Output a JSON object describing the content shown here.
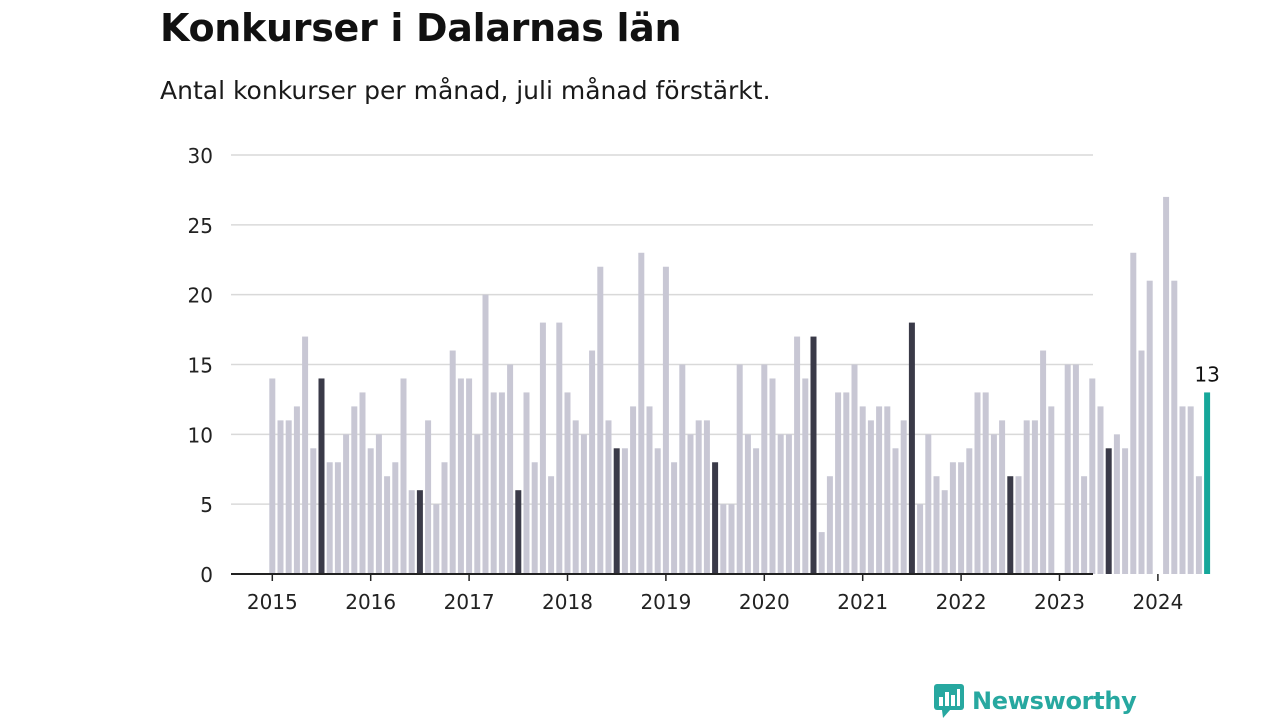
{
  "title": "Konkurser i Dalarnas län",
  "subtitle": "Antal konkurser per månad, juli månad förstärkt.",
  "brand": {
    "name": "Newsworthy",
    "icon": "newsworthy-logo-icon"
  },
  "colors": {
    "bar": "#c8c7d4",
    "highlight": "#3a3a48",
    "latest": "#16a79a",
    "grid": "#d9d9d9",
    "axis": "#222222",
    "brand": "#27a8a0"
  },
  "chart_data": {
    "type": "bar",
    "title": "Konkurser i Dalarnas län",
    "subtitle": "Antal konkurser per månad, juli månad förstärkt.",
    "xlabel": "",
    "ylabel": "",
    "ylim": [
      0,
      30
    ],
    "yticks": [
      0,
      5,
      10,
      15,
      20,
      25,
      30
    ],
    "xticks": [
      "2015",
      "2016",
      "2017",
      "2018",
      "2019",
      "2020",
      "2021",
      "2022",
      "2023",
      "2024"
    ],
    "grid": true,
    "start": "2015-01",
    "highlight_month": "juli",
    "annotation": {
      "label": "13",
      "month": "2024-07"
    },
    "values": [
      14,
      11,
      11,
      12,
      17,
      9,
      14,
      8,
      8,
      10,
      12,
      13,
      9,
      10,
      7,
      8,
      14,
      6,
      6,
      11,
      5,
      8,
      16,
      14,
      14,
      10,
      20,
      13,
      13,
      15,
      6,
      13,
      8,
      18,
      7,
      18,
      13,
      11,
      10,
      16,
      22,
      11,
      9,
      9,
      12,
      23,
      12,
      9,
      22,
      8,
      15,
      10,
      11,
      11,
      8,
      5,
      5,
      15,
      10,
      9,
      15,
      14,
      10,
      10,
      17,
      14,
      17,
      3,
      7,
      13,
      13,
      15,
      12,
      11,
      12,
      12,
      9,
      11,
      18,
      5,
      10,
      7,
      6,
      8,
      8,
      9,
      13,
      13,
      10,
      11,
      7,
      7,
      11,
      11,
      16,
      12,
      0,
      15,
      15,
      7,
      14,
      12,
      9,
      10,
      9,
      23,
      16,
      21,
      0,
      27,
      21,
      12,
      12,
      7,
      13
    ]
  }
}
